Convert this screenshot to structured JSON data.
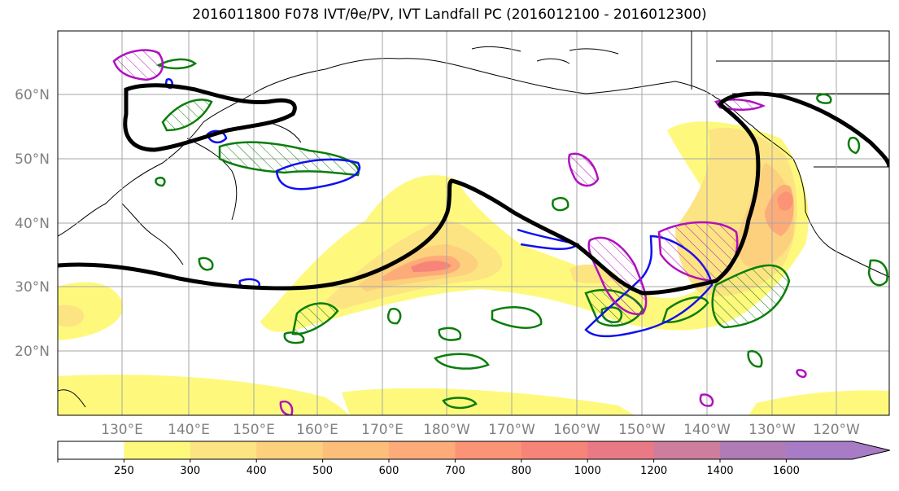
{
  "title": "2016011800 F078 IVT/θe/PV, IVT Landfall PC (2016012100 - 2016012300)",
  "lat_labels": [
    "60°N",
    "50°N",
    "40°N",
    "30°N",
    "20°N"
  ],
  "lon_labels": [
    "130°E",
    "140°E",
    "150°E",
    "160°E",
    "170°E",
    "180°W",
    "170°W",
    "160°W",
    "150°W",
    "140°W",
    "130°W",
    "120°W"
  ],
  "colorbar": {
    "ticks": [
      "250",
      "300",
      "400",
      "500",
      "600",
      "700",
      "800",
      "1000",
      "1200",
      "1400",
      "1600"
    ],
    "colors": [
      "#ffffff",
      "#fef97d",
      "#fde482",
      "#fdd07e",
      "#fdbe7c",
      "#fdab79",
      "#fb9476",
      "#f78478",
      "#e97a85",
      "#cf7d9f",
      "#b07bb7",
      "#a87bc6"
    ]
  },
  "colors": {
    "ivt_contour": "#000000",
    "theta_e": "#0a7d0a",
    "pv_blue": "#1010ee",
    "pv_magenta": "#b010c0",
    "grid": "#a6a6a6"
  }
}
